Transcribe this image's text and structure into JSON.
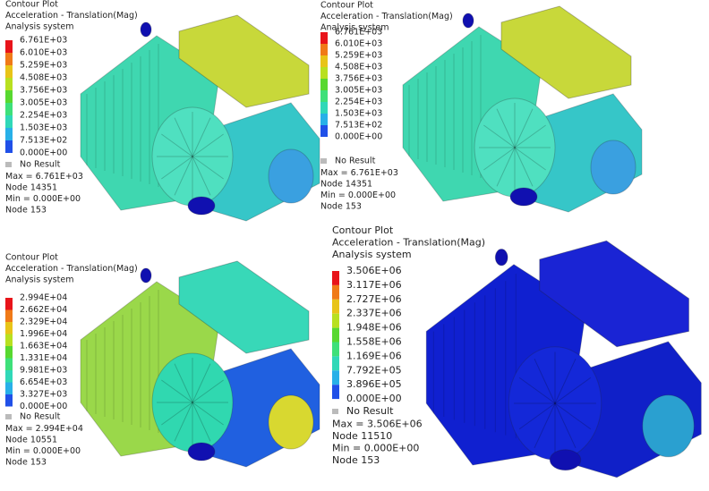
{
  "panels": [
    {
      "title": "Contour Plot",
      "quantity": "Acceleration - Translation(Mag)",
      "system": "Analysis system",
      "legend": [
        "6.761E+03",
        "6.010E+03",
        "5.259E+03",
        "4.508E+03",
        "3.756E+03",
        "3.005E+03",
        "2.254E+03",
        "1.503E+03",
        "7.513E+02",
        "0.000E+00"
      ],
      "no_result": "No Result",
      "max": "Max = 6.761E+03",
      "max_node": "Node 14351",
      "min": "Min = 0.000E+00",
      "min_node": "Node 153"
    },
    {
      "title": "Contour Plot",
      "quantity": "Acceleration - Translation(Mag)",
      "system": "Analysis system",
      "legend": [
        "6.761E+03",
        "6.010E+03",
        "5.259E+03",
        "4.508E+03",
        "3.756E+03",
        "3.005E+03",
        "2.254E+03",
        "1.503E+03",
        "7.513E+02",
        "0.000E+00"
      ],
      "no_result": "No Result",
      "max": "Max = 6.761E+03",
      "max_node": "Node 14351",
      "min": "Min = 0.000E+00",
      "min_node": "Node 153"
    },
    {
      "title": "Contour Plot",
      "quantity": "Acceleration - Translation(Mag)",
      "system": "Analysis system",
      "legend": [
        "2.994E+04",
        "2.662E+04",
        "2.329E+04",
        "1.996E+04",
        "1.663E+04",
        "1.331E+04",
        "9.981E+03",
        "6.654E+03",
        "3.327E+03",
        "0.000E+00"
      ],
      "no_result": "No Result",
      "max": "Max = 2.994E+04",
      "max_node": "Node 10551",
      "min": "Min = 0.000E+00",
      "min_node": "Node 153"
    },
    {
      "title": "Contour Plot",
      "quantity": "Acceleration - Translation(Mag)",
      "system": "Analysis system",
      "legend": [
        "3.506E+06",
        "3.117E+06",
        "2.727E+06",
        "2.337E+06",
        "1.948E+06",
        "1.558E+06",
        "1.169E+06",
        "7.792E+05",
        "3.896E+05",
        "0.000E+00"
      ],
      "no_result": "No Result",
      "max": "Max = 3.506E+06",
      "max_node": "Node 11510",
      "min": "Min = 0.000E+00",
      "min_node": "Node 153"
    }
  ]
}
